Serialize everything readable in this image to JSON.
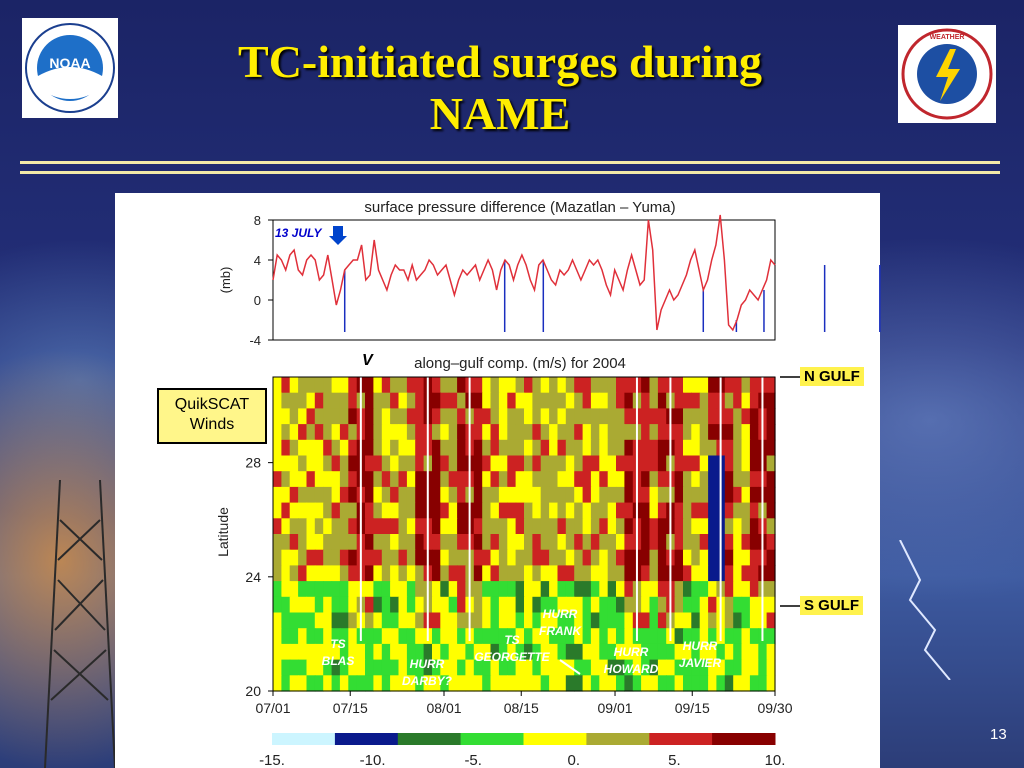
{
  "slide": {
    "title_line1": "TC-initiated surges during",
    "title_line2": "NAME",
    "page_number": "13",
    "logo_left": "NOAA",
    "logo_right": "NATIONAL WEATHER SERVICE"
  },
  "callout": {
    "line1": "QuikSCAT",
    "line2": "Winds"
  },
  "gulf_labels": {
    "north": "N GULF",
    "south": "S GULF"
  },
  "chart_data": [
    {
      "type": "line",
      "title": "surface pressure difference (Mazatlan – Yuma)",
      "ylabel": "(mb)",
      "ylim": [
        -4,
        8
      ],
      "yticks": [
        8,
        4,
        0,
        -4
      ],
      "annotation": "13 JULY",
      "x_start_day": 0,
      "values": [
        2,
        4.5,
        4,
        3,
        4.5,
        5,
        3,
        2.5,
        4,
        4.5,
        4,
        2,
        2.5,
        4.5,
        2,
        -0.5,
        1,
        3,
        3.5,
        4,
        4,
        5.5,
        2,
        2.5,
        6,
        3,
        2,
        1,
        2.5,
        3.5,
        3,
        3,
        2,
        3.5,
        2,
        2.5,
        3,
        4,
        3.5,
        2.5,
        3,
        3.5,
        2,
        0.5,
        2,
        3,
        2.5,
        3,
        3.5,
        2,
        3,
        4,
        3,
        1,
        3,
        4,
        3.5,
        2,
        3.5,
        4.5,
        3.5,
        2,
        1,
        3.5,
        4,
        3,
        2,
        1.5,
        3,
        2.5,
        3,
        4,
        3,
        2,
        3,
        4,
        3.5,
        4,
        3,
        1.5,
        0.5,
        3,
        2,
        1,
        3,
        4.5,
        3,
        1.5,
        2,
        8,
        5,
        -3,
        -1,
        0,
        1,
        0,
        0.5,
        1.5,
        2.5,
        4,
        5,
        3,
        1,
        2,
        4,
        5.5,
        8.5,
        4,
        -2.5,
        -3,
        -2,
        -0.5,
        0,
        1,
        0.5,
        0,
        1,
        2,
        4,
        3.5
      ],
      "event_days": [
        13,
        42,
        49,
        78,
        84,
        89,
        100,
        110
      ]
    },
    {
      "type": "heatmap",
      "title": "along–gulf comp. (m/s) for 2004",
      "corner_label": "V",
      "ylabel": "Latitude",
      "ylim": [
        20,
        31
      ],
      "yticks": [
        20,
        24,
        28
      ],
      "x_tick_labels": [
        "07/01",
        "07/15",
        "08/01",
        "08/15",
        "09/01",
        "09/15",
        "09/30"
      ],
      "colorbar_ticks": [
        "-15.",
        "-10.",
        "-5.",
        "0.",
        "5.",
        "10."
      ],
      "color_bins": [
        {
          "color": "#ccf5ff"
        },
        {
          "color": "#0a1a8c"
        },
        {
          "color": "#2a7a2a"
        },
        {
          "color": "#33dd33"
        },
        {
          "color": "#ffff00"
        },
        {
          "color": "#aaaa33"
        },
        {
          "color": "#cc2222"
        },
        {
          "color": "#880000"
        }
      ],
      "storms": [
        {
          "label1": "TS",
          "label2": "BLAS"
        },
        {
          "label1": "HURR",
          "label2": "DARBY?"
        },
        {
          "label1": "TS",
          "label2": "GEORGETTE"
        },
        {
          "label1": "HURR",
          "label2": "FRANK"
        },
        {
          "label1": "HURR",
          "label2": "HOWARD"
        },
        {
          "label1": "HURR",
          "label2": "JAVIER"
        }
      ]
    }
  ]
}
